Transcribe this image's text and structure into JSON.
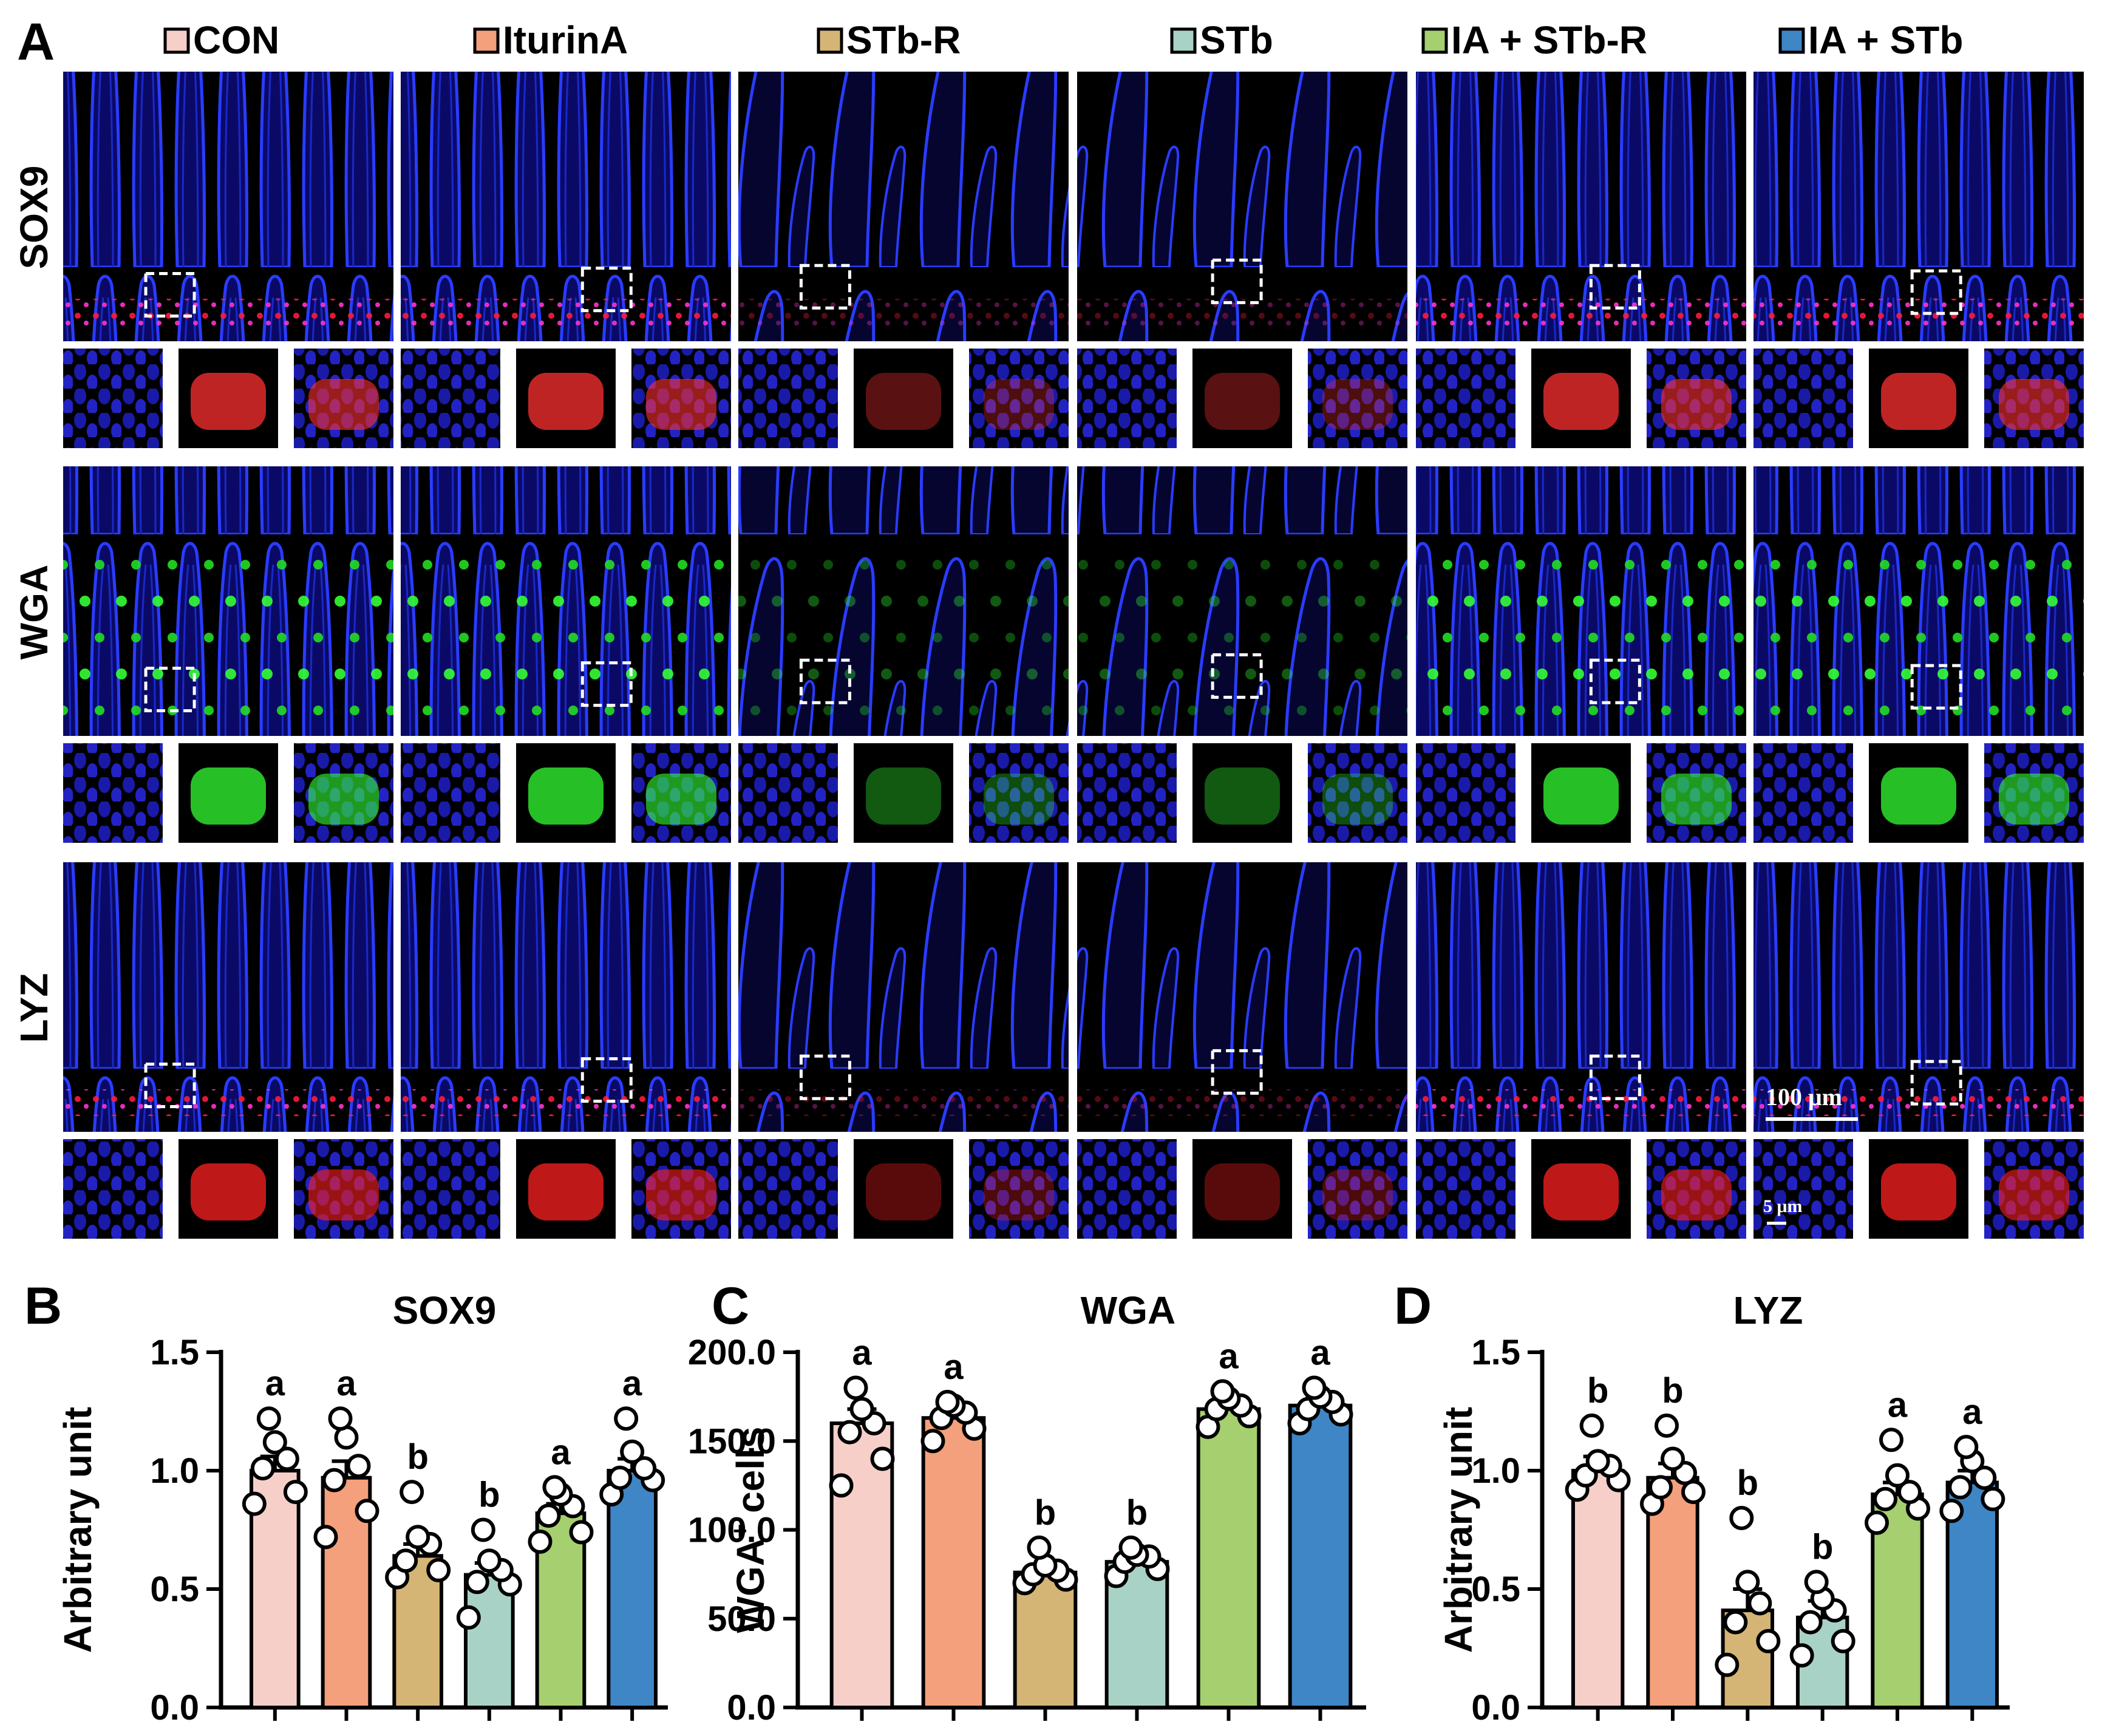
{
  "panel_letters": {
    "a": "A",
    "b": "B",
    "c": "C",
    "d": "D"
  },
  "groups": [
    {
      "name": "CON",
      "color": "#f6cfc9"
    },
    {
      "name": "IturinA",
      "color": "#f4a07c"
    },
    {
      "name": "STb-R",
      "color": "#d5b576"
    },
    {
      "name": "STb",
      "color": "#a9d2c6"
    },
    {
      "name": "IA + STb-R",
      "color": "#a6cf6f"
    },
    {
      "name": "IA + STb",
      "color": "#3e86c6"
    }
  ],
  "micrographs": {
    "rows": [
      {
        "label": "SOX9",
        "stain": "red",
        "inset_tint": "#ff3030"
      },
      {
        "label": "WGA",
        "stain": "green",
        "inset_tint": "#33ff33"
      },
      {
        "label": "LYZ",
        "stain": "red",
        "inset_tint": "#ff2020"
      }
    ],
    "scale_bar_main": "100 μm",
    "scale_bar_inset": "5 μm"
  },
  "chart_data": [
    {
      "panel": "B",
      "type": "bar",
      "title": "SOX9",
      "ylabel": "Arbitrary unit",
      "ylabel_sup": "",
      "ylim": [
        0,
        1.5
      ],
      "yticks": [
        0.0,
        0.5,
        1.0,
        1.5
      ],
      "ytick_labels": [
        "0.0",
        "0.5",
        "1.0",
        "1.5"
      ],
      "categories": [
        "CON",
        "IturinA",
        "STb-R",
        "STb",
        "IA + STb-R",
        "IA + STb"
      ],
      "values": [
        1.0,
        0.97,
        0.64,
        0.56,
        0.82,
        1.0
      ],
      "errors": [
        0.06,
        0.07,
        0.05,
        0.05,
        0.04,
        0.05
      ],
      "points": [
        [
          0.86,
          0.91,
          1.01,
          1.05,
          1.12,
          1.22
        ],
        [
          0.72,
          0.83,
          0.96,
          1.02,
          1.14,
          1.22
        ],
        [
          0.55,
          0.58,
          0.62,
          0.69,
          0.72,
          0.91
        ],
        [
          0.38,
          0.52,
          0.53,
          0.58,
          0.62,
          0.75
        ],
        [
          0.7,
          0.74,
          0.81,
          0.85,
          0.9,
          0.93
        ],
        [
          0.9,
          0.96,
          0.97,
          1.01,
          1.08,
          1.22
        ]
      ],
      "letters": [
        "a",
        "a",
        "b",
        "b",
        "a",
        "a"
      ]
    },
    {
      "panel": "C",
      "type": "bar",
      "title": "WGA",
      "ylabel": "WGA",
      "ylabel_sup": "+",
      "ylabel_suffix": " cells",
      "ylim": [
        0,
        200
      ],
      "yticks": [
        0,
        50,
        100,
        150,
        200
      ],
      "ytick_labels": [
        "0.0",
        "50.0",
        "100.0",
        "150.0",
        "200.0"
      ],
      "categories": [
        "CON",
        "IturinA",
        "STb-R",
        "STb",
        "IA + STb-R",
        "IA + STb"
      ],
      "values": [
        160,
        163,
        76,
        82,
        168,
        170
      ],
      "errors": [
        8,
        5,
        3,
        3,
        4,
        4
      ],
      "points": [
        [
          125,
          140,
          155,
          160,
          168,
          180
        ],
        [
          150,
          157,
          163,
          166,
          170,
          172
        ],
        [
          70,
          72,
          75,
          77,
          80,
          90
        ],
        [
          74,
          78,
          82,
          85,
          86,
          90
        ],
        [
          158,
          164,
          168,
          170,
          174,
          178
        ],
        [
          160,
          165,
          168,
          172,
          175,
          180
        ]
      ],
      "letters": [
        "a",
        "a",
        "b",
        "b",
        "a",
        "a"
      ]
    },
    {
      "panel": "D",
      "type": "bar",
      "title": "LYZ",
      "ylabel": "Arbitrary unit",
      "ylabel_sup": "",
      "ylim": [
        0,
        1.5
      ],
      "yticks": [
        0.0,
        0.5,
        1.0,
        1.5
      ],
      "ytick_labels": [
        "0.0",
        "0.5",
        "1.0",
        "1.5"
      ],
      "categories": [
        "CON",
        "IturinA",
        "STb-R",
        "STb",
        "IA + STb-R",
        "IA + STb"
      ],
      "values": [
        1.0,
        0.97,
        0.41,
        0.38,
        0.9,
        0.95
      ],
      "errors": [
        0.06,
        0.06,
        0.09,
        0.07,
        0.05,
        0.05
      ],
      "points": [
        [
          0.92,
          0.96,
          0.98,
          1.02,
          1.04,
          1.19
        ],
        [
          0.86,
          0.91,
          0.93,
          0.99,
          1.05,
          1.19
        ],
        [
          0.18,
          0.28,
          0.36,
          0.44,
          0.53,
          0.8
        ],
        [
          0.22,
          0.28,
          0.36,
          0.41,
          0.46,
          0.53
        ],
        [
          0.78,
          0.84,
          0.88,
          0.91,
          0.98,
          1.13
        ],
        [
          0.83,
          0.88,
          0.93,
          0.97,
          1.04,
          1.1
        ]
      ],
      "letters": [
        "b",
        "b",
        "b",
        "b",
        "a",
        "a"
      ]
    }
  ]
}
